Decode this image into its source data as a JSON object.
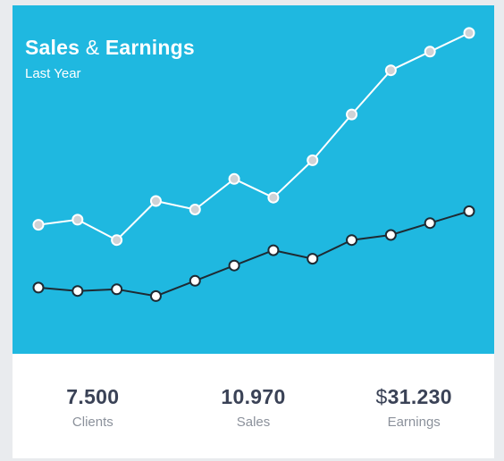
{
  "widget": {
    "title_part1": "Sales",
    "title_amp": "&",
    "title_part2": "Earnings",
    "subtitle": "Last Year"
  },
  "colors": {
    "chart_bg": "#1fb8e0",
    "card_bg": "#ffffff",
    "page_bg": "#e9ebee",
    "series_top_line": "#ffffff",
    "series_top_marker": "#cfd2d6",
    "series_bottom_line": "#1e2a33",
    "series_bottom_marker": "#ffffff"
  },
  "chart_data": {
    "type": "line",
    "title": "",
    "xlabel": "",
    "ylabel": "",
    "ylim": [
      0,
      100
    ],
    "x": [
      1,
      2,
      3,
      4,
      5,
      6,
      7,
      8,
      9,
      10,
      11,
      12
    ],
    "grid": false,
    "series": [
      {
        "values": [
          38,
          39.5,
          33.5,
          45,
          42.5,
          51.5,
          46,
          57,
          70.5,
          83.5,
          89,
          94.5
        ]
      },
      {
        "values": [
          19.5,
          18.5,
          19,
          17,
          21.5,
          26,
          30.5,
          28,
          33.5,
          35,
          38.5,
          42
        ]
      }
    ]
  },
  "stats": [
    {
      "value": "7.500",
      "currency": "",
      "label": "Clients"
    },
    {
      "value": "10.970",
      "currency": "",
      "label": "Sales"
    },
    {
      "value": "31.230",
      "currency": "$",
      "label": "Earnings"
    }
  ]
}
